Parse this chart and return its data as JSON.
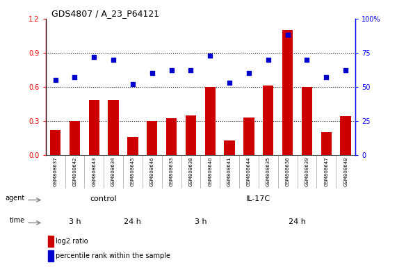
{
  "title": "GDS4807 / A_23_P64121",
  "samples": [
    "GSM808637",
    "GSM808642",
    "GSM808643",
    "GSM808634",
    "GSM808645",
    "GSM808646",
    "GSM808633",
    "GSM808638",
    "GSM808640",
    "GSM808641",
    "GSM808644",
    "GSM808635",
    "GSM808636",
    "GSM808639",
    "GSM808647",
    "GSM808648"
  ],
  "log2_ratio": [
    0.22,
    0.3,
    0.48,
    0.48,
    0.16,
    0.3,
    0.32,
    0.35,
    0.6,
    0.13,
    0.33,
    0.61,
    1.1,
    0.6,
    0.2,
    0.34
  ],
  "percentile": [
    55,
    57,
    72,
    70,
    52,
    60,
    62,
    62,
    73,
    53,
    60,
    70,
    88,
    70,
    57,
    62
  ],
  "bar_color": "#cc0000",
  "dot_color": "#0000cc",
  "left_ylim": [
    0,
    1.2
  ],
  "right_ylim": [
    0,
    100
  ],
  "left_yticks": [
    0,
    0.3,
    0.6,
    0.9,
    1.2
  ],
  "right_ytick_vals": [
    0,
    25,
    50,
    75,
    100
  ],
  "right_ytick_labels": [
    "0",
    "25",
    "50",
    "75",
    "100%"
  ],
  "hlines": [
    0.3,
    0.6,
    0.9
  ],
  "color_control_light": "#bbffbb",
  "color_il17c": "#66dd66",
  "color_3h": "#ffaaff",
  "color_24h": "#dd55dd",
  "color_xbg": "#cccccc",
  "legend_bar_label": "log2 ratio",
  "legend_dot_label": "percentile rank within the sample",
  "agent_arrow_color": "#888888",
  "spine_color": "#000000",
  "grid_color": "#000000"
}
